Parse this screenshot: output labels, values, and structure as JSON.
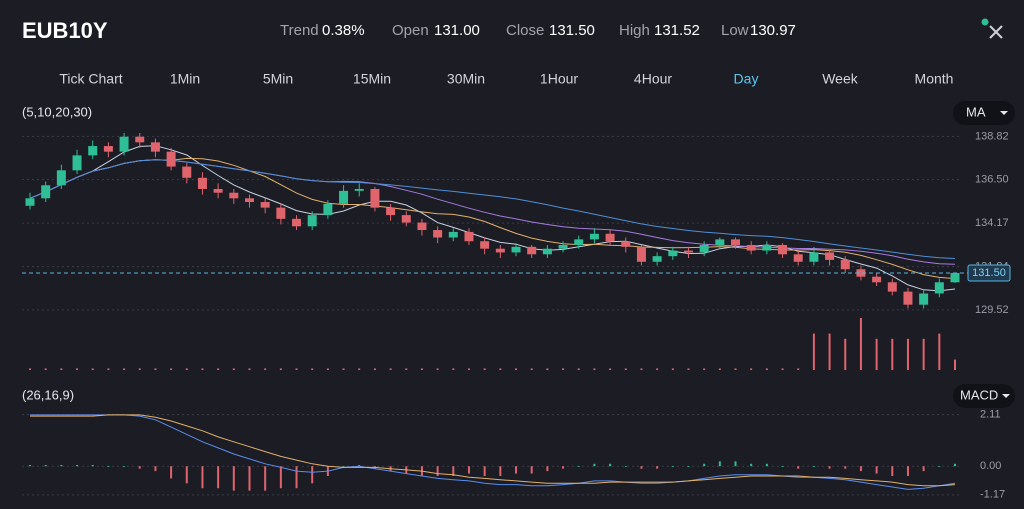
{
  "header": {
    "symbol": "EUB10Y",
    "stats": [
      {
        "label": "Trend",
        "value": "0.38%"
      },
      {
        "label": "Open",
        "value": "131.00"
      },
      {
        "label": "Close",
        "value": "131.50"
      },
      {
        "label": "High",
        "value": "131.52"
      },
      {
        "label": "Low",
        "value": "130.97"
      }
    ]
  },
  "tabs": [
    "Tick Chart",
    "1Min",
    "5Min",
    "15Min",
    "30Min",
    "1Hour",
    "4Hour",
    "Day",
    "Week",
    "Month"
  ],
  "active_tab": 7,
  "chart_data": [
    {
      "type": "candlestick",
      "label": "(5,10,20,30)",
      "indicator": "MA",
      "ma_periods": [
        5,
        10,
        20,
        30
      ],
      "ma_colors": [
        "#c9d3e6",
        "#e2b06c",
        "#a77be0",
        "#4f8fd8"
      ],
      "up_color": "#2fbf97",
      "down_color": "#e0646c",
      "grid": true,
      "ylim": [
        126.3,
        140.5
      ],
      "yticks": [
        138.82,
        {
          "value": 136.5,
          "label": "136.50"
        },
        134.17,
        131.84,
        129.52
      ],
      "last_price": {
        "value": 131.5,
        "label": "131.50"
      },
      "open": [
        135.1,
        135.5,
        136.2,
        137.0,
        137.8,
        138.3,
        138.0,
        138.8,
        138.5,
        138.0,
        137.2,
        136.6,
        136.0,
        135.8,
        135.5,
        135.3,
        135.0,
        134.4,
        134.0,
        134.6,
        135.2,
        135.9,
        136.0,
        135.0,
        134.6,
        134.2,
        133.8,
        133.4,
        133.7,
        133.2,
        132.8,
        132.6,
        132.9,
        132.5,
        132.8,
        133.0,
        133.3,
        133.6,
        133.2,
        132.9,
        132.1,
        132.4,
        132.7,
        132.6,
        133.0,
        133.3,
        133.0,
        132.7,
        133.0,
        132.5,
        132.1,
        132.6,
        132.2,
        131.7,
        131.3,
        131.0,
        130.5,
        129.8,
        130.4,
        131.0
      ],
      "high": [
        135.8,
        136.4,
        137.3,
        138.1,
        138.6,
        138.5,
        139.0,
        139.0,
        138.7,
        138.2,
        137.4,
        136.9,
        136.3,
        136.0,
        135.7,
        135.5,
        135.2,
        134.6,
        134.8,
        135.4,
        136.2,
        136.3,
        136.1,
        135.2,
        134.8,
        134.4,
        134.0,
        133.9,
        133.9,
        133.4,
        133.0,
        133.1,
        133.0,
        133.0,
        133.2,
        133.5,
        133.9,
        133.8,
        133.4,
        133.0,
        132.6,
        132.9,
        132.9,
        133.2,
        133.4,
        133.4,
        133.2,
        133.2,
        133.1,
        132.7,
        132.9,
        132.7,
        132.4,
        131.9,
        131.5,
        131.2,
        130.7,
        130.6,
        131.2,
        131.52
      ],
      "low": [
        134.9,
        135.3,
        136.0,
        136.8,
        137.6,
        137.7,
        137.8,
        138.2,
        137.7,
        137.0,
        136.3,
        135.7,
        135.5,
        135.2,
        135.0,
        134.7,
        134.1,
        133.8,
        133.8,
        134.4,
        135.0,
        135.6,
        134.8,
        134.3,
        134.0,
        133.5,
        133.1,
        133.2,
        133.0,
        132.5,
        132.3,
        132.4,
        132.3,
        132.3,
        132.6,
        132.8,
        133.1,
        133.0,
        132.6,
        131.9,
        131.9,
        132.2,
        132.3,
        132.4,
        132.8,
        132.8,
        132.5,
        132.5,
        132.3,
        131.9,
        131.9,
        131.9,
        131.5,
        131.1,
        130.8,
        130.3,
        129.6,
        129.6,
        130.2,
        130.97
      ],
      "close": [
        135.5,
        136.2,
        137.0,
        137.8,
        138.3,
        138.0,
        138.8,
        138.5,
        138.0,
        137.2,
        136.6,
        136.0,
        135.8,
        135.5,
        135.3,
        135.0,
        134.4,
        134.0,
        134.6,
        135.2,
        135.9,
        136.0,
        135.0,
        134.6,
        134.2,
        133.8,
        133.4,
        133.7,
        133.2,
        132.8,
        132.6,
        132.9,
        132.5,
        132.8,
        133.0,
        133.3,
        133.6,
        133.2,
        132.9,
        132.1,
        132.4,
        132.7,
        132.6,
        133.0,
        133.3,
        133.0,
        132.7,
        133.0,
        132.5,
        132.1,
        132.6,
        132.2,
        131.7,
        131.3,
        131.0,
        130.5,
        129.8,
        130.4,
        131.0,
        131.5
      ],
      "volume": [
        0.3,
        0.3,
        0.3,
        0.3,
        0.3,
        0.3,
        0.3,
        0.3,
        0.3,
        0.3,
        0.3,
        0.3,
        0.3,
        0.3,
        0.3,
        0.3,
        0.3,
        0.3,
        0.3,
        0.3,
        0.3,
        0.3,
        0.3,
        0.3,
        0.3,
        0.3,
        0.3,
        0.3,
        0.3,
        0.3,
        0.3,
        0.3,
        0.3,
        0.3,
        0.3,
        0.3,
        0.3,
        0.3,
        0.3,
        0.3,
        0.3,
        0.3,
        0.3,
        0.3,
        0.3,
        0.3,
        0.3,
        0.3,
        0.3,
        0.3,
        7,
        7,
        6,
        10,
        6,
        6,
        6,
        6,
        7,
        2
      ]
    },
    {
      "type": "macd",
      "label": "(26,16,9)",
      "indicator": "MACD",
      "ylim": [
        -1.3,
        2.3
      ],
      "yticks": [
        2.11,
        {
          "value": 0,
          "label": "0.00"
        },
        -1.17
      ],
      "histogram": {
        "up_color": "#2fbf97",
        "down_color": "#e0646c",
        "values": [
          0.05,
          0.05,
          0.05,
          0.05,
          0.05,
          0,
          0,
          -0.1,
          -0.2,
          -0.5,
          -0.7,
          -0.9,
          -0.9,
          -1.0,
          -1.0,
          -1.0,
          -0.9,
          -0.9,
          -0.7,
          -0.4,
          0,
          0.05,
          -0.1,
          -0.2,
          -0.3,
          -0.4,
          -0.4,
          -0.4,
          -0.3,
          -0.4,
          -0.4,
          -0.3,
          -0.3,
          -0.2,
          -0.1,
          0,
          0.1,
          0.1,
          0,
          -0.1,
          -0.1,
          0,
          0,
          0.1,
          0.2,
          0.2,
          0.1,
          0.1,
          0,
          -0.1,
          0,
          -0.1,
          -0.1,
          -0.2,
          -0.3,
          -0.4,
          -0.4,
          -0.2,
          0,
          0.1
        ]
      },
      "series": [
        {
          "color": "#5b8def",
          "values": [
            2.1,
            2.1,
            2.1,
            2.1,
            2.1,
            2.1,
            2.1,
            2.05,
            1.9,
            1.6,
            1.3,
            1.0,
            0.75,
            0.5,
            0.3,
            0.1,
            -0.05,
            -0.2,
            -0.25,
            -0.2,
            -0.05,
            0.0,
            -0.1,
            -0.2,
            -0.3,
            -0.4,
            -0.5,
            -0.55,
            -0.6,
            -0.7,
            -0.75,
            -0.75,
            -0.8,
            -0.8,
            -0.75,
            -0.7,
            -0.6,
            -0.6,
            -0.65,
            -0.7,
            -0.7,
            -0.65,
            -0.6,
            -0.5,
            -0.4,
            -0.35,
            -0.35,
            -0.35,
            -0.4,
            -0.45,
            -0.45,
            -0.5,
            -0.55,
            -0.65,
            -0.75,
            -0.85,
            -0.95,
            -0.9,
            -0.8,
            -0.7
          ]
        },
        {
          "color": "#e2b06c",
          "values": [
            2.05,
            2.05,
            2.05,
            2.05,
            2.05,
            2.1,
            2.1,
            2.1,
            2.0,
            1.85,
            1.65,
            1.45,
            1.2,
            1.0,
            0.8,
            0.6,
            0.4,
            0.25,
            0.1,
            0.0,
            -0.05,
            -0.05,
            -0.05,
            -0.1,
            -0.15,
            -0.2,
            -0.3,
            -0.35,
            -0.45,
            -0.5,
            -0.55,
            -0.6,
            -0.65,
            -0.7,
            -0.7,
            -0.7,
            -0.7,
            -0.65,
            -0.65,
            -0.65,
            -0.65,
            -0.65,
            -0.6,
            -0.55,
            -0.5,
            -0.45,
            -0.4,
            -0.4,
            -0.4,
            -0.4,
            -0.45,
            -0.45,
            -0.5,
            -0.55,
            -0.6,
            -0.65,
            -0.75,
            -0.8,
            -0.8,
            -0.75
          ]
        }
      ]
    }
  ]
}
